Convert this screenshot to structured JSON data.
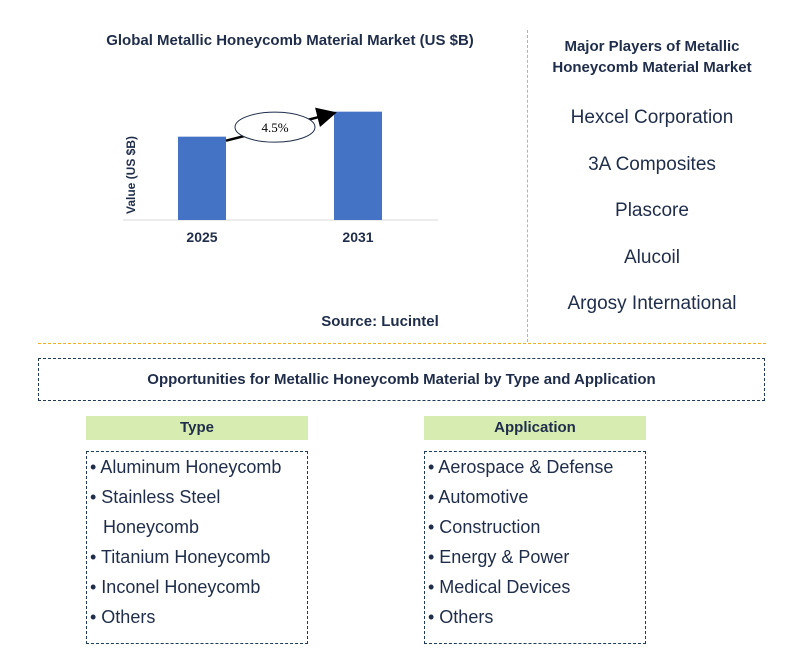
{
  "chart_data": {
    "type": "bar",
    "title": "Global Metallic Honeycomb Material Market (US $B)",
    "ylabel": "Value (US $B)",
    "categories": [
      "2025",
      "2031"
    ],
    "values": [
      1.0,
      1.3
    ],
    "ylim": [
      0,
      1.5
    ],
    "annotation": "4.5%",
    "bar_color": "#4472c4",
    "grid": false
  },
  "source": "Source: Lucintel",
  "players": {
    "title": "Major Players of Metallic Honeycomb Material Market",
    "items": [
      "Hexcel Corporation",
      "3A Composites",
      "Plascore",
      "Alucoil",
      "Argosy International"
    ]
  },
  "opportunities": {
    "title": "Opportunities for Metallic Honeycomb Material by Type and Application",
    "type_header": "Type",
    "type_items": [
      "• Aluminum Honeycomb",
      "• Stainless Steel Honeycomb",
      "• Titanium Honeycomb",
      "• Inconel Honeycomb",
      "• Others"
    ],
    "application_header": "Application",
    "application_items": [
      "• Aerospace & Defense",
      "• Automotive",
      "• Construction",
      "• Energy & Power",
      "• Medical Devices",
      "• Others"
    ]
  }
}
